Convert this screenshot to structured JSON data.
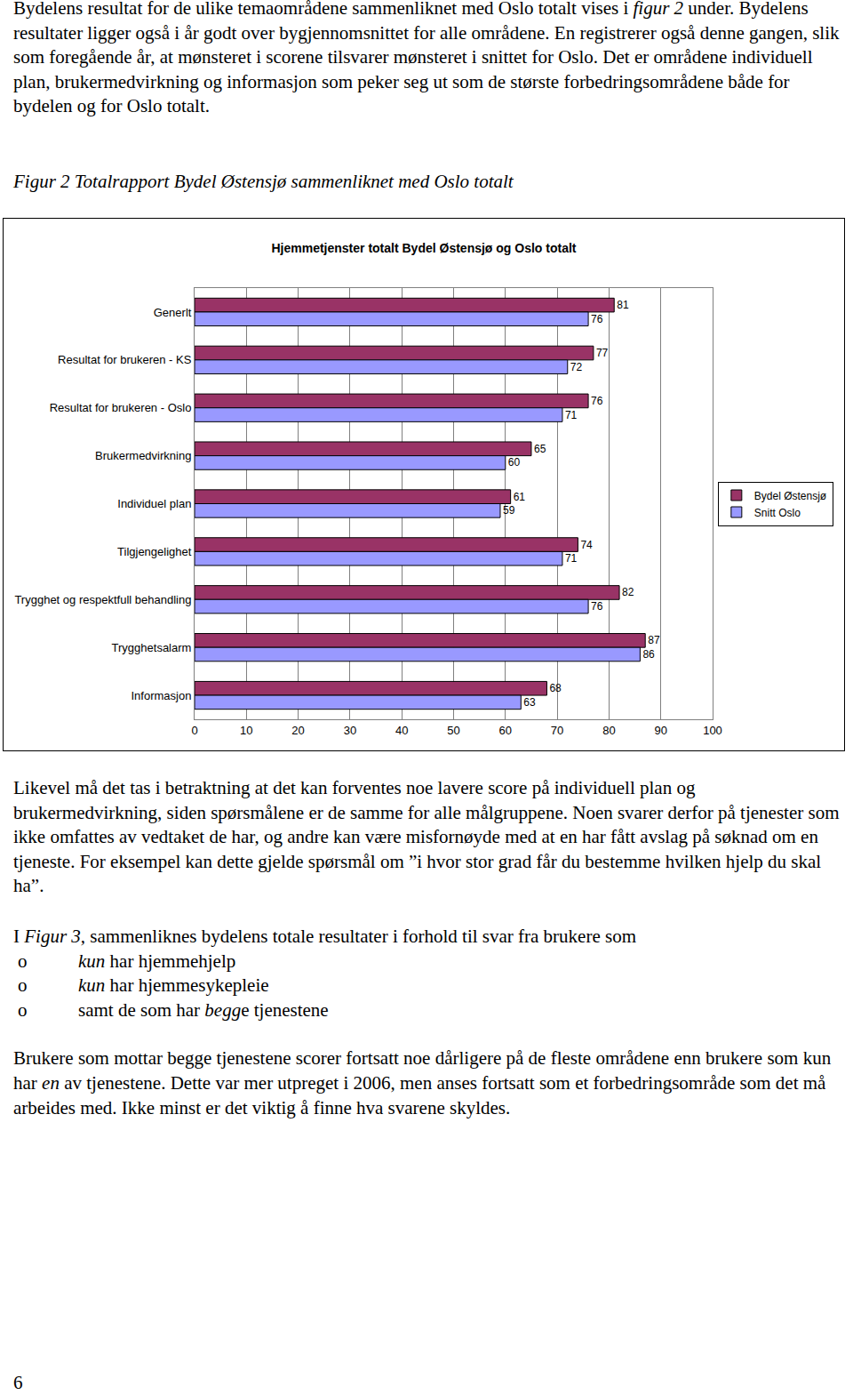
{
  "text_before": [
    [
      "Bydelens resultat for de ulike temaområdene sammenliknet med Oslo totalt vises i ",
      {
        "text": "figur 2",
        "italic": true
      },
      " under.  Bydelens resultater ligger også i år godt over bygjennomsnittet for alle områdene. En registrerer også denne gangen, slik som foregående år, at mønsteret i scorene tilsvarer mønsteret i snittet for Oslo. Det er områdene individuell plan, brukermedvirkning og informasjon som peker seg ut som de største forbedringsområdene både for bydelen og for Oslo totalt."
    ]
  ],
  "caption": [
    {
      "text": "Figur 2 Totalrapport Bydel Østensjø sammenliknet med Oslo totalt",
      "italic": true
    }
  ],
  "chart_data": {
    "type": "bar",
    "orientation": "horizontal",
    "title": "Hjemmetjenster totalt Bydel Østensjø og Oslo totalt",
    "categories": [
      "Generlt",
      "Resultat for brukeren - KS",
      "Resultat for brukeren - Oslo",
      "Brukermedvirkning",
      "Individuel plan",
      "Tilgjengelighet",
      "Trygghet og respektfull behandling",
      "Trygghetsalarm",
      "Informasjon"
    ],
    "series": [
      {
        "name": "Bydel Østensjø",
        "color": "#993366",
        "values": [
          81,
          77,
          76,
          65,
          61,
          74,
          82,
          87,
          68
        ]
      },
      {
        "name": "Snitt Oslo",
        "color": "#9999ff",
        "values": [
          76,
          72,
          71,
          60,
          59,
          71,
          76,
          86,
          63
        ]
      }
    ],
    "xlim": [
      0,
      100
    ],
    "xticks": [
      0,
      10,
      20,
      30,
      40,
      50,
      60,
      70,
      80,
      90,
      100
    ],
    "grid": true,
    "legend": "right",
    "data_labels": true
  },
  "text_after": [
    [
      "Likevel må det tas i betraktning at det kan forventes noe lavere score på individuell plan og brukermedvirkning, siden spørsmålene er de samme for alle målgruppene. Noen svarer derfor på tjenester som ikke omfattes av vedtaket de har, og andre kan være misfornøyde med at en har fått avslag på søknad om en tjeneste. For eksempel kan dette gjelde spørsmål om ”i hvor stor grad får du bestemme hvilken hjelp du skal ha”."
    ]
  ],
  "intro": [
    "I ",
    {
      "text": "Figur 3,",
      "italic": true
    },
    " sammenliknes bydelens totale resultater i forhold til svar fra brukere som"
  ],
  "list": {
    "bullet": "o",
    "items": [
      [
        {
          "text": "kun",
          "italic": true
        },
        " har hjemmehjelp"
      ],
      [
        {
          "text": "kun",
          "italic": true
        },
        " har hjemmesykepleie"
      ],
      [
        "samt de som har ",
        {
          "text": "begg",
          "italic": true
        },
        "e tjenestene"
      ]
    ]
  },
  "closing": [
    "Brukere som mottar begge tjenestene scorer fortsatt noe dårligere på de fleste områdene enn brukere som kun har ",
    {
      "text": "en",
      "italic": true
    },
    " av tjenestene. Dette var mer utpreget i 2006, men anses fortsatt som et forbedringsområde som det må arbeides med. Ikke minst er det viktig å finne hva svarene skyldes."
  ],
  "page_number": "6"
}
